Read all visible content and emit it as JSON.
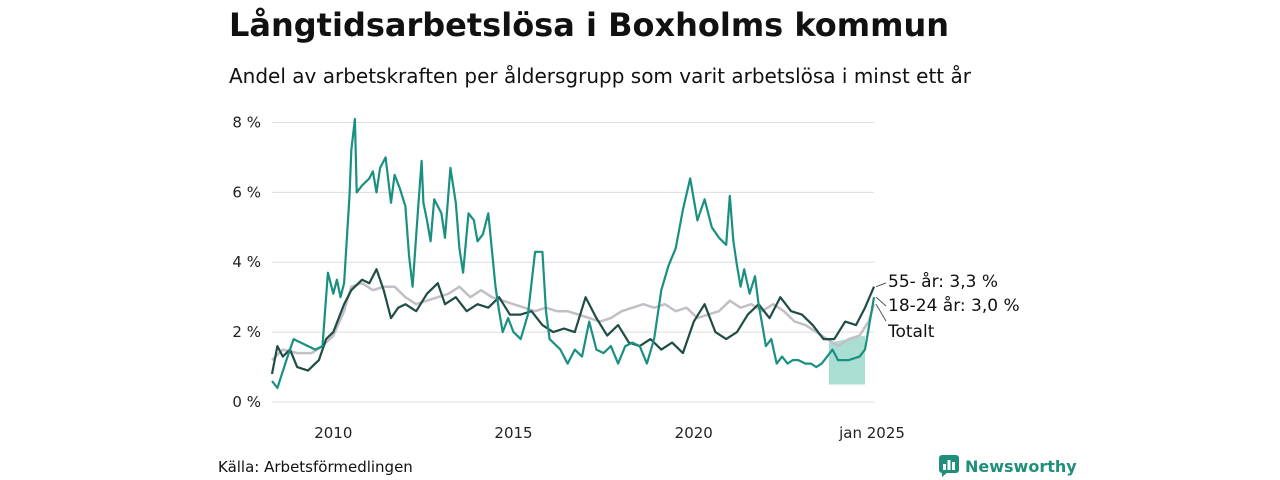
{
  "title": "Långtidsarbetslösa i Boxholms kommun",
  "subtitle": "Andel av arbetskraften per åldersgrupp som varit arbetslösa i minst ett år",
  "source": "Källa: Arbetsförmedlingen",
  "logo_text": "Newsworthy",
  "logo_icon": "chart-logo-icon",
  "colors": {
    "young": "#1a9080",
    "old": "#1f4d45",
    "total": "#c2bfc6",
    "band": "#8fd3c4",
    "grid": "#dddddd"
  },
  "chart_data": {
    "type": "line",
    "title": "Långtidsarbetslösa i Boxholms kommun",
    "xlabel": "",
    "ylabel": "",
    "xlim": [
      2008.3,
      2025.0
    ],
    "ylim": [
      0,
      8.5
    ],
    "y_ticks": [
      0,
      2,
      4,
      6,
      8
    ],
    "y_tick_labels": [
      "0 %",
      "2 %",
      "4 %",
      "6 %",
      "8 %"
    ],
    "x_ticks": [
      2010,
      2015,
      2020,
      2025.0
    ],
    "x_tick_labels": [
      "2010",
      "2015",
      "2020",
      "jan 2025"
    ],
    "series": [
      {
        "key": "total",
        "name": "Totalt",
        "label": "Totalt",
        "x": [
          2008.3,
          2008.6,
          2009.0,
          2009.4,
          2009.7,
          2010.0,
          2010.3,
          2010.5,
          2010.8,
          2011.1,
          2011.4,
          2011.7,
          2012.0,
          2012.3,
          2012.6,
          2012.9,
          2013.2,
          2013.5,
          2013.8,
          2014.1,
          2014.4,
          2014.7,
          2015.0,
          2015.3,
          2015.6,
          2015.9,
          2016.2,
          2016.5,
          2016.8,
          2017.1,
          2017.4,
          2017.7,
          2018.0,
          2018.3,
          2018.6,
          2018.9,
          2019.2,
          2019.5,
          2019.8,
          2020.1,
          2020.4,
          2020.7,
          2021.0,
          2021.3,
          2021.6,
          2021.9,
          2022.2,
          2022.5,
          2022.8,
          2023.1,
          2023.4,
          2023.7,
          2024.0,
          2024.3,
          2024.6,
          2024.85,
          2025.0
        ],
        "y": [
          1.2,
          1.5,
          1.4,
          1.4,
          1.6,
          1.9,
          2.6,
          3.3,
          3.4,
          3.2,
          3.3,
          3.3,
          3.0,
          2.8,
          2.9,
          3.0,
          3.1,
          3.3,
          3.0,
          3.2,
          3.0,
          2.9,
          2.8,
          2.7,
          2.6,
          2.7,
          2.6,
          2.6,
          2.5,
          2.4,
          2.3,
          2.4,
          2.6,
          2.7,
          2.8,
          2.7,
          2.8,
          2.6,
          2.7,
          2.4,
          2.5,
          2.6,
          2.9,
          2.7,
          2.8,
          2.6,
          2.8,
          2.6,
          2.3,
          2.2,
          2.0,
          1.8,
          1.6,
          1.8,
          1.9,
          2.3,
          2.8
        ]
      },
      {
        "key": "old",
        "name": "55- år",
        "label": "55- år: 3,3 %",
        "x": [
          2008.3,
          2008.45,
          2008.6,
          2008.8,
          2009.0,
          2009.3,
          2009.6,
          2009.8,
          2010.0,
          2010.3,
          2010.5,
          2010.8,
          2011.0,
          2011.2,
          2011.4,
          2011.6,
          2011.8,
          2012.0,
          2012.3,
          2012.6,
          2012.9,
          2013.1,
          2013.4,
          2013.7,
          2014.0,
          2014.3,
          2014.6,
          2014.9,
          2015.2,
          2015.5,
          2015.8,
          2016.1,
          2016.4,
          2016.7,
          2017.0,
          2017.3,
          2017.6,
          2017.9,
          2018.2,
          2018.5,
          2018.8,
          2019.1,
          2019.4,
          2019.7,
          2020.0,
          2020.3,
          2020.6,
          2020.9,
          2021.2,
          2021.5,
          2021.8,
          2022.1,
          2022.4,
          2022.7,
          2023.0,
          2023.3,
          2023.6,
          2023.9,
          2024.2,
          2024.5,
          2024.75,
          2025.0
        ],
        "y": [
          0.8,
          1.6,
          1.3,
          1.5,
          1.0,
          0.9,
          1.2,
          1.8,
          2.0,
          2.8,
          3.2,
          3.5,
          3.4,
          3.8,
          3.2,
          2.4,
          2.7,
          2.8,
          2.6,
          3.1,
          3.4,
          2.8,
          3.0,
          2.6,
          2.8,
          2.7,
          3.0,
          2.5,
          2.5,
          2.6,
          2.2,
          2.0,
          2.1,
          2.0,
          3.0,
          2.4,
          1.9,
          2.2,
          1.7,
          1.6,
          1.8,
          1.5,
          1.7,
          1.4,
          2.3,
          2.8,
          2.0,
          1.8,
          2.0,
          2.5,
          2.8,
          2.4,
          3.0,
          2.6,
          2.5,
          2.2,
          1.8,
          1.8,
          2.3,
          2.2,
          2.7,
          3.3
        ]
      },
      {
        "key": "young",
        "name": "18-24 år",
        "label": "18-24 år: 3,0 %",
        "x": [
          2008.3,
          2008.45,
          2008.7,
          2008.9,
          2009.1,
          2009.3,
          2009.5,
          2009.7,
          2009.85,
          2010.0,
          2010.1,
          2010.2,
          2010.3,
          2010.45,
          2010.5,
          2010.6,
          2010.65,
          2010.8,
          2011.0,
          2011.1,
          2011.2,
          2011.3,
          2011.45,
          2011.6,
          2011.7,
          2011.85,
          2012.0,
          2012.1,
          2012.2,
          2012.35,
          2012.45,
          2012.5,
          2012.6,
          2012.7,
          2012.8,
          2013.0,
          2013.1,
          2013.25,
          2013.4,
          2013.5,
          2013.6,
          2013.75,
          2013.9,
          2014.0,
          2014.15,
          2014.3,
          2014.5,
          2014.6,
          2014.7,
          2014.85,
          2015.0,
          2015.2,
          2015.4,
          2015.6,
          2015.8,
          2015.9,
          2016.0,
          2016.1,
          2016.3,
          2016.5,
          2016.7,
          2016.9,
          2017.1,
          2017.3,
          2017.5,
          2017.7,
          2017.9,
          2018.1,
          2018.3,
          2018.5,
          2018.7,
          2018.9,
          2019.1,
          2019.3,
          2019.5,
          2019.7,
          2019.9,
          2020.1,
          2020.3,
          2020.5,
          2020.7,
          2020.9,
          2021.0,
          2021.1,
          2021.2,
          2021.3,
          2021.4,
          2021.55,
          2021.7,
          2021.8,
          2021.9,
          2022.0,
          2022.15,
          2022.3,
          2022.45,
          2022.6,
          2022.75,
          2022.9,
          2023.1,
          2023.25,
          2023.4,
          2023.55,
          2023.7,
          2023.85,
          2024.0,
          2024.3,
          2024.6,
          2024.75,
          2025.0
        ],
        "y": [
          0.6,
          0.4,
          1.2,
          1.8,
          1.7,
          1.6,
          1.5,
          1.6,
          3.7,
          3.1,
          3.5,
          3.0,
          3.4,
          5.9,
          7.2,
          8.1,
          6.0,
          6.2,
          6.4,
          6.6,
          6.0,
          6.7,
          7.0,
          5.7,
          6.5,
          6.1,
          5.6,
          4.2,
          3.3,
          5.5,
          6.9,
          5.7,
          5.2,
          4.6,
          5.8,
          5.4,
          4.7,
          6.7,
          5.7,
          4.4,
          3.7,
          5.4,
          5.2,
          4.6,
          4.8,
          5.4,
          3.3,
          2.6,
          2.0,
          2.4,
          2.0,
          1.8,
          2.5,
          4.3,
          4.3,
          2.6,
          1.8,
          1.7,
          1.5,
          1.1,
          1.5,
          1.3,
          2.3,
          1.5,
          1.4,
          1.6,
          1.1,
          1.6,
          1.7,
          1.6,
          1.1,
          1.8,
          3.2,
          3.9,
          4.4,
          5.5,
          6.4,
          5.2,
          5.8,
          5.0,
          4.7,
          4.5,
          5.9,
          4.6,
          3.9,
          3.3,
          3.8,
          3.1,
          3.6,
          2.8,
          2.2,
          1.6,
          1.8,
          1.1,
          1.3,
          1.1,
          1.2,
          1.2,
          1.1,
          1.1,
          1.0,
          1.1,
          1.3,
          1.5,
          1.2,
          1.2,
          1.3,
          1.5,
          3.0
        ]
      }
    ],
    "band": {
      "x": [
        2023.75,
        2024.75
      ],
      "lower": [
        0.5,
        0.5
      ],
      "upper": [
        1.7,
        1.9
      ]
    },
    "end_labels": [
      "55- år: 3,3 %",
      "18-24 år: 3,0 %",
      "Totalt"
    ]
  }
}
